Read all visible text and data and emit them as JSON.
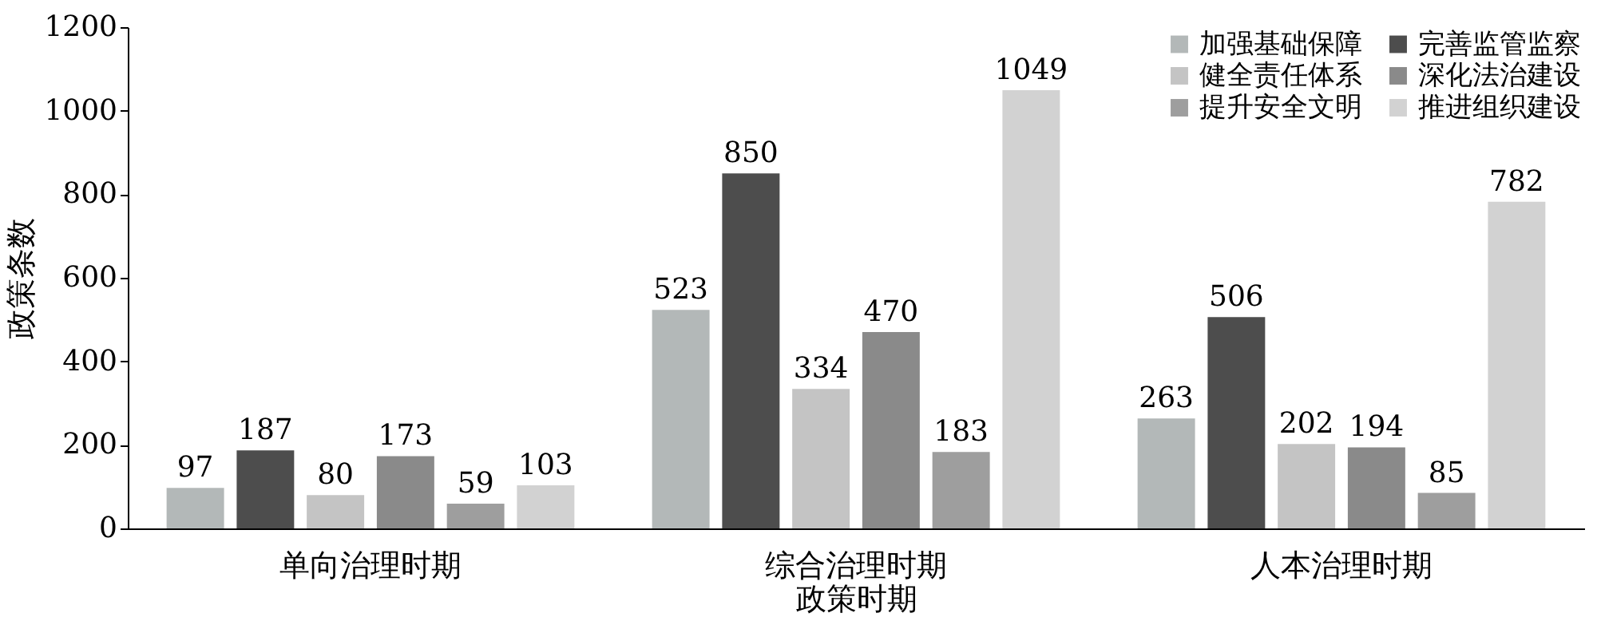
{
  "chart_data": {
    "type": "bar",
    "xlabel": "政策时期",
    "ylabel": "政策条数",
    "categories": [
      "单向治理时期",
      "综合治理时期",
      "人本治理时期"
    ],
    "series": [
      {
        "name": "加强基础保障",
        "color": "#b3b8b8",
        "values": [
          97,
          523,
          263
        ]
      },
      {
        "name": "完善监管监察",
        "color": "#4d4d4d",
        "values": [
          187,
          850,
          506
        ]
      },
      {
        "name": "健全责任体系",
        "color": "#c4c4c4",
        "values": [
          80,
          334,
          202
        ]
      },
      {
        "name": "深化法治建设",
        "color": "#8a8a8a",
        "values": [
          173,
          470,
          194
        ]
      },
      {
        "name": "提升安全文明",
        "color": "#9e9e9e",
        "values": [
          59,
          183,
          85
        ]
      },
      {
        "name": "推进组织建设",
        "color": "#d2d2d2",
        "values": [
          103,
          1049,
          782
        ]
      }
    ],
    "ylim": [
      0,
      1200
    ],
    "yticks": [
      0,
      200,
      400,
      600,
      800,
      1000,
      1200
    ],
    "data_labels": true,
    "legend": "top right",
    "grid": false
  }
}
